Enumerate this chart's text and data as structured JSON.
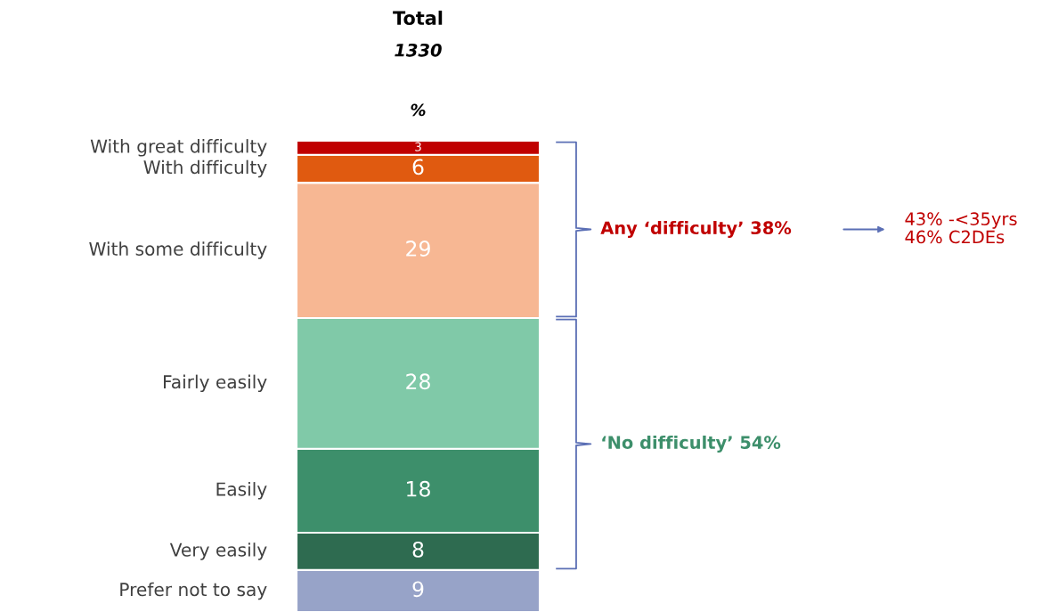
{
  "chart_data": {
    "type": "bar",
    "title": "Total",
    "subtitle": "1330",
    "ylabel": "%",
    "categories": [
      null
    ],
    "stacked": true,
    "data_labels": true,
    "series": [
      {
        "name": "Prefer not to say",
        "color": "#97a3c8",
        "values": [
          9
        ]
      },
      {
        "name": "Very easily",
        "color": "#2e6b50",
        "values": [
          8
        ]
      },
      {
        "name": "Easily",
        "color": "#3d8f6b",
        "values": [
          18
        ]
      },
      {
        "name": "Fairly easily",
        "color": "#80c9a8",
        "values": [
          28
        ]
      },
      {
        "name": "With some difficulty",
        "color": "#f7b793",
        "values": [
          29
        ]
      },
      {
        "name": "With difficulty",
        "color": "#e05a10",
        "values": [
          6
        ]
      },
      {
        "name": "With great difficulty",
        "color": "#c00000",
        "values": [
          3
        ]
      }
    ],
    "annotations": [
      "Any ‘difficulty’ 38%",
      "‘No difficulty’ 54%",
      "43% -<35yrs\n46% C2DEs"
    ]
  }
}
